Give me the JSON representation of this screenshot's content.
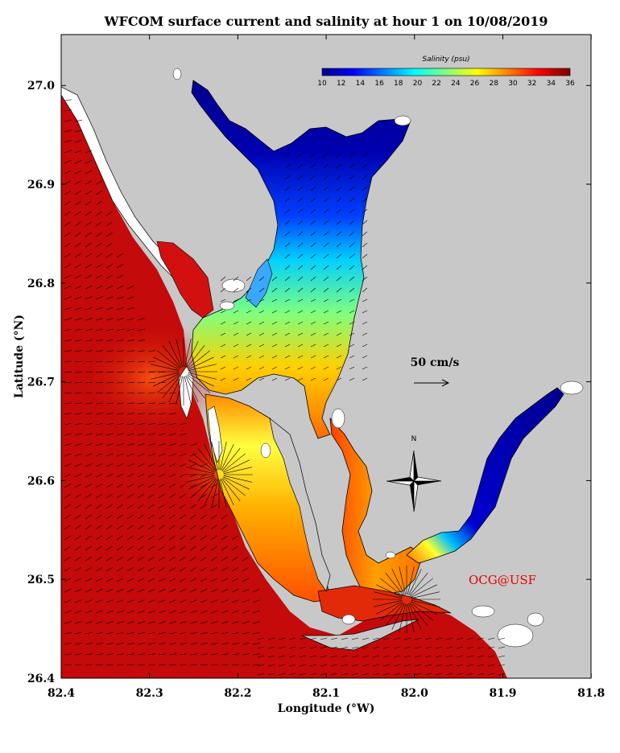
{
  "map": {
    "title": "WFCOM surface current and salinity at hour 1 on 10/08/2019",
    "x_axis_label": "Longitude (°W)",
    "y_axis_label": "Latitude (°N)",
    "lon_ticks": [
      "82.4",
      "82.3",
      "82.2",
      "82.1",
      "82.0",
      "81.9",
      "81.8"
    ],
    "lat_ticks": [
      "27.0",
      "26.9",
      "26.8",
      "26.7",
      "26.6",
      "26.5",
      "26.4"
    ],
    "lon_range": [
      -82.4,
      -81.8
    ],
    "lat_range": [
      26.4,
      27.05
    ],
    "colorbar": {
      "title": "Salinity (psu)",
      "ticks": [
        "10",
        "12",
        "14",
        "16",
        "18",
        "20",
        "22",
        "24",
        "26",
        "28",
        "30",
        "32",
        "34",
        "36"
      ],
      "range": [
        10,
        36
      ],
      "colormap": [
        "#00008f",
        "#0000ff",
        "#007fff",
        "#00ffff",
        "#7fff7f",
        "#ffff00",
        "#ff7f00",
        "#ff0000",
        "#7f0000"
      ]
    },
    "scale_arrow_label": "50 cm/s",
    "north_label": "N",
    "credit": "OCG@USF",
    "colors": {
      "land": "#c8c8c8",
      "gulf": "#c40a0a",
      "credit": "#e00000",
      "arrow": "#000000"
    }
  }
}
